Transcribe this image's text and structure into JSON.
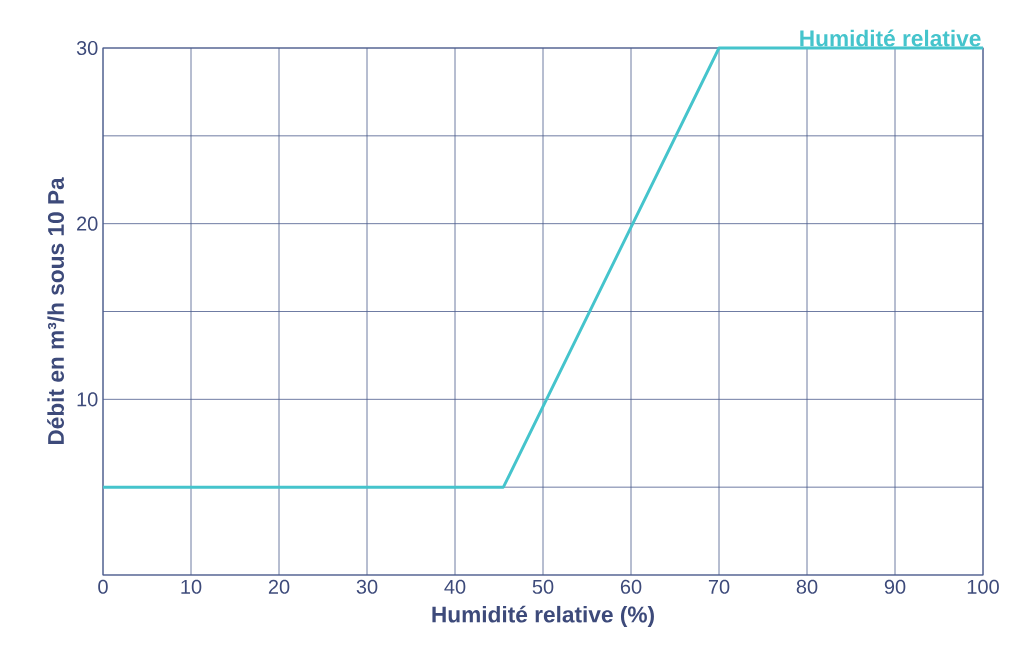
{
  "chart_data": {
    "type": "line",
    "xlabel": "Humidité relative (%)",
    "ylabel": "Débit en m³/h sous 10 Pa",
    "x": [
      0,
      45.5,
      70,
      100
    ],
    "series": [
      {
        "name": "Humidité relative",
        "color": "#45c4cc",
        "values": [
          5,
          5,
          30,
          30
        ]
      }
    ],
    "xlim": [
      0,
      100
    ],
    "xticks": [
      0,
      10,
      20,
      30,
      40,
      50,
      60,
      70,
      80,
      90,
      100
    ],
    "ylim": [
      0,
      30
    ],
    "yticks": [
      {
        "value": 0,
        "label": null
      },
      {
        "value": 5,
        "label": null
      },
      10,
      {
        "value": 15,
        "label": null
      },
      20,
      {
        "value": 25,
        "label": null
      },
      30
    ],
    "grid": true
  }
}
